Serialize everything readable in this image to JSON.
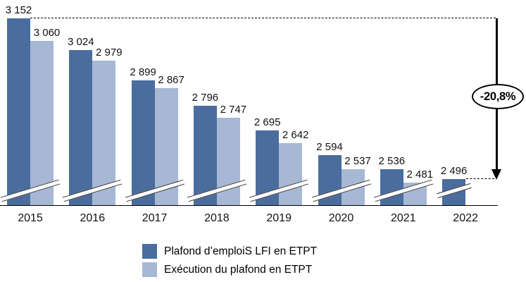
{
  "chart_data": {
    "type": "bar",
    "title": "",
    "categories": [
      "2015",
      "2016",
      "2017",
      "2018",
      "2019",
      "2020",
      "2021",
      "2022"
    ],
    "series": [
      {
        "name": "Plafond d’emploiS LFI en ETPT",
        "color": "#4a6d9e",
        "values": [
          3152,
          3024,
          2899,
          2796,
          2695,
          2594,
          2536,
          2496
        ],
        "labels": [
          "3 152",
          "3 024",
          "2 899",
          "2 796",
          "2 695",
          "2 594",
          "2 536",
          "2 496"
        ]
      },
      {
        "name": "Exécution du plafond en ETPT",
        "color": "#a7b8d5",
        "values": [
          3060,
          2979,
          2867,
          2747,
          2642,
          2537,
          2481,
          null
        ],
        "labels": [
          "3 060",
          "2 979",
          "2 867",
          "2 747",
          "2 642",
          "2 537",
          "2 481",
          null
        ]
      }
    ],
    "value_axis": {
      "min": 2387,
      "max": 3152,
      "axis_break": true,
      "gridlines": false
    },
    "legend_position": "bottom",
    "annotation": {
      "label": "-20,8%"
    }
  },
  "colors": {
    "bar_dark": "#4a6d9e",
    "bar_light": "#a7b8d5",
    "axis": "#000000",
    "text": "#111111"
  }
}
